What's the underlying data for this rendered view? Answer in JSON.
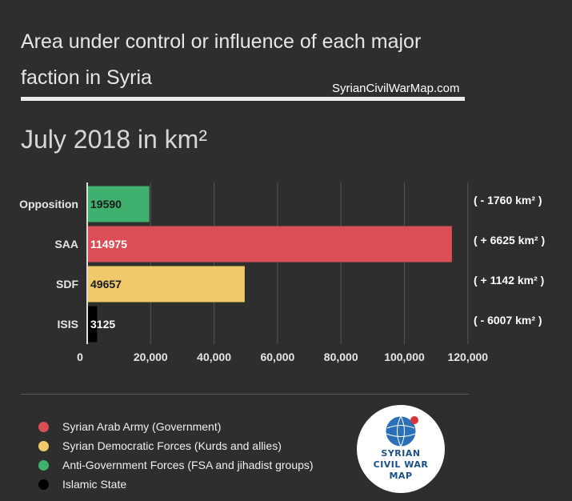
{
  "header": {
    "title": "Area under control or influence of each major faction in Syria",
    "source": "SyrianCivilWarMap.com",
    "subtitle": "July 2018 in km²"
  },
  "chart_data": {
    "type": "bar",
    "orientation": "horizontal",
    "title": "",
    "categories": [
      "Opposition",
      "SAA",
      "SDF",
      "ISIS"
    ],
    "values": [
      19590,
      114975,
      49657,
      3125
    ],
    "value_labels": [
      "19590",
      "114975",
      "49657",
      "3125"
    ],
    "changes": [
      "( - 1760 km² )",
      "( + 6625 km² )",
      "( + 1142 km² )",
      "( - 6007 km² )"
    ],
    "colors": [
      "#3fb06e",
      "#dc4e55",
      "#efc96a",
      "#000000"
    ],
    "value_label_colors": [
      "#1a1a1a",
      "#ffffff",
      "#1a1a1a",
      "#ffffff"
    ],
    "xlim": [
      0,
      120000
    ],
    "xticks": [
      0,
      20000,
      40000,
      60000,
      80000,
      100000,
      120000
    ],
    "xtick_labels": [
      "0",
      "20,000",
      "40,000",
      "60,000",
      "80,000",
      "100,000",
      "120,000"
    ],
    "grid": true,
    "xlabel": "",
    "ylabel": ""
  },
  "legend": [
    {
      "label": "Syrian Arab Army (Government)",
      "color": "#dc4e55"
    },
    {
      "label": "Syrian Democratic Forces (Kurds and allies)",
      "color": "#efc96a"
    },
    {
      "label": "Anti-Government Forces (FSA and jihadist groups)",
      "color": "#3fb06e"
    },
    {
      "label": "Islamic State",
      "color": "#000000"
    }
  ],
  "logo": {
    "line1": "SYRIAN",
    "line2": "CIVIL WAR",
    "line3": "MAP"
  }
}
